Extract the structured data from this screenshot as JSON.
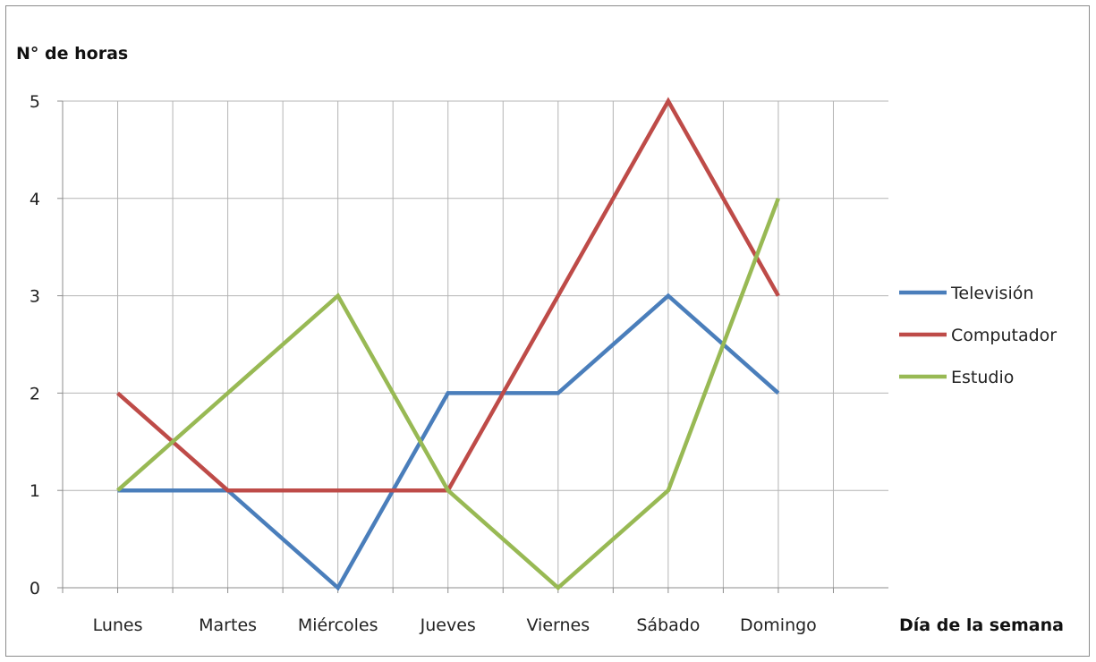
{
  "chart_data": {
    "type": "line",
    "ylabel": "N° de horas",
    "xlabel": "Día de la semana",
    "categories": [
      "Lunes",
      "Martes",
      "Miércoles",
      "Jueves",
      "Viernes",
      "Sábado",
      "Domingo"
    ],
    "ylim": [
      0,
      5
    ],
    "yticks": [
      "0",
      "1",
      "2",
      "3",
      "4",
      "5"
    ],
    "grid": true,
    "legend_position": "right",
    "series": [
      {
        "name": "Televisión",
        "color": "#4a7ebb",
        "values": [
          1,
          1,
          0,
          2,
          2,
          3,
          2
        ]
      },
      {
        "name": "Computador",
        "color": "#be4b48",
        "values": [
          2,
          1,
          1,
          1,
          3,
          5,
          3
        ]
      },
      {
        "name": "Estudio",
        "color": "#98b954",
        "values": [
          1,
          2,
          3,
          1,
          0,
          1,
          4
        ]
      }
    ]
  }
}
